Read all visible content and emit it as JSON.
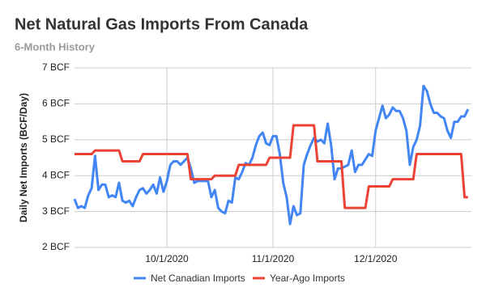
{
  "chart_data": {
    "type": "line",
    "title": "Net Natural Gas Imports From Canada",
    "subtitle": "6-Month History",
    "y_label": "Daily Net Imports (BCF/Day)",
    "x": [
      "9/4/2020",
      "9/5/2020",
      "9/6/2020",
      "9/7/2020",
      "9/8/2020",
      "9/9/2020",
      "9/10/2020",
      "9/11/2020",
      "9/12/2020",
      "9/13/2020",
      "9/14/2020",
      "9/15/2020",
      "9/16/2020",
      "9/17/2020",
      "9/18/2020",
      "9/19/2020",
      "9/20/2020",
      "9/21/2020",
      "9/22/2020",
      "9/23/2020",
      "9/24/2020",
      "9/25/2020",
      "9/26/2020",
      "9/27/2020",
      "9/28/2020",
      "9/29/2020",
      "9/30/2020",
      "10/1/2020",
      "10/2/2020",
      "10/3/2020",
      "10/4/2020",
      "10/5/2020",
      "10/6/2020",
      "10/7/2020",
      "10/8/2020",
      "10/9/2020",
      "10/10/2020",
      "10/11/2020",
      "10/12/2020",
      "10/13/2020",
      "10/14/2020",
      "10/15/2020",
      "10/16/2020",
      "10/17/2020",
      "10/18/2020",
      "10/19/2020",
      "10/20/2020",
      "10/21/2020",
      "10/22/2020",
      "10/23/2020",
      "10/24/2020",
      "10/25/2020",
      "10/26/2020",
      "10/27/2020",
      "10/28/2020",
      "10/29/2020",
      "10/30/2020",
      "10/31/2020",
      "11/1/2020",
      "11/2/2020",
      "11/3/2020",
      "11/4/2020",
      "11/5/2020",
      "11/6/2020",
      "11/7/2020",
      "11/8/2020",
      "11/9/2020",
      "11/10/2020",
      "11/11/2020",
      "11/12/2020",
      "11/13/2020",
      "11/14/2020",
      "11/15/2020",
      "11/16/2020",
      "11/17/2020",
      "11/18/2020",
      "11/19/2020",
      "11/20/2020",
      "11/21/2020",
      "11/22/2020",
      "11/23/2020",
      "11/24/2020",
      "11/25/2020",
      "11/26/2020",
      "11/27/2020",
      "11/28/2020",
      "11/29/2020",
      "11/30/2020",
      "12/1/2020",
      "12/2/2020",
      "12/3/2020",
      "12/4/2020",
      "12/5/2020",
      "12/6/2020",
      "12/7/2020",
      "12/8/2020",
      "12/9/2020",
      "12/10/2020",
      "12/11/2020",
      "12/12/2020",
      "12/13/2020",
      "12/14/2020",
      "12/15/2020",
      "12/16/2020",
      "12/17/2020",
      "12/18/2020",
      "12/19/2020",
      "12/20/2020",
      "12/21/2020",
      "12/22/2020",
      "12/23/2020",
      "12/24/2020",
      "12/25/2020",
      "12/26/2020",
      "12/27/2020",
      "12/28/2020"
    ],
    "series": [
      {
        "name": "Net Canadian Imports",
        "color": "#4285f4",
        "values": [
          3.35,
          3.1,
          3.15,
          3.1,
          3.45,
          3.65,
          4.55,
          3.6,
          3.75,
          3.75,
          3.4,
          3.45,
          3.4,
          3.8,
          3.3,
          3.25,
          3.3,
          3.15,
          3.4,
          3.6,
          3.65,
          3.5,
          3.6,
          3.75,
          3.5,
          3.95,
          3.55,
          3.85,
          4.3,
          4.4,
          4.4,
          4.3,
          4.4,
          4.5,
          4.2,
          3.8,
          3.85,
          3.85,
          3.85,
          3.85,
          3.4,
          3.6,
          3.1,
          3.0,
          2.95,
          3.3,
          3.25,
          3.95,
          3.9,
          4.1,
          4.35,
          4.3,
          4.5,
          4.85,
          5.1,
          5.2,
          4.9,
          4.85,
          5.1,
          5.1,
          4.6,
          3.8,
          3.4,
          2.65,
          3.15,
          2.9,
          2.95,
          4.3,
          4.6,
          4.85,
          5.05,
          4.95,
          5.0,
          4.9,
          5.45,
          4.85,
          3.9,
          4.2,
          4.2,
          4.25,
          4.3,
          4.7,
          4.1,
          4.3,
          4.3,
          4.45,
          4.6,
          4.55,
          5.25,
          5.6,
          5.95,
          5.6,
          5.7,
          5.9,
          5.8,
          5.8,
          5.6,
          5.25,
          4.3,
          4.8,
          5.0,
          5.4,
          6.5,
          6.35,
          6.0,
          5.75,
          5.75,
          5.65,
          5.6,
          5.25,
          5.05,
          5.5,
          5.5,
          5.65,
          5.65,
          5.85
        ]
      },
      {
        "name": "Year-Ago Imports",
        "color": "#ea4335",
        "values": [
          4.6,
          4.6,
          4.6,
          4.6,
          4.6,
          4.6,
          4.7,
          4.7,
          4.7,
          4.7,
          4.7,
          4.7,
          4.7,
          4.7,
          4.4,
          4.4,
          4.4,
          4.4,
          4.4,
          4.4,
          4.6,
          4.6,
          4.6,
          4.6,
          4.6,
          4.6,
          4.6,
          4.6,
          4.6,
          4.6,
          4.6,
          4.6,
          4.6,
          4.6,
          3.9,
          3.9,
          3.9,
          3.9,
          3.9,
          3.9,
          3.9,
          4.0,
          4.0,
          4.0,
          4.0,
          4.0,
          4.0,
          4.0,
          4.3,
          4.3,
          4.3,
          4.3,
          4.3,
          4.3,
          4.3,
          4.3,
          4.3,
          4.5,
          4.5,
          4.5,
          4.5,
          4.5,
          4.5,
          4.5,
          5.4,
          5.4,
          5.4,
          5.4,
          5.4,
          5.4,
          5.4,
          4.4,
          4.4,
          4.4,
          4.4,
          4.4,
          4.4,
          4.4,
          4.4,
          3.1,
          3.1,
          3.1,
          3.1,
          3.1,
          3.1,
          3.1,
          3.7,
          3.7,
          3.7,
          3.7,
          3.7,
          3.7,
          3.7,
          3.9,
          3.9,
          3.9,
          3.9,
          3.9,
          3.9,
          3.9,
          4.6,
          4.6,
          4.6,
          4.6,
          4.6,
          4.6,
          4.6,
          4.6,
          4.6,
          4.6,
          4.6,
          4.6,
          4.6,
          4.6,
          3.4,
          3.4
        ]
      }
    ],
    "xlim": [
      "9/4/2020",
      "12/29/2020"
    ],
    "xticks": [
      "10/1/2020",
      "11/1/2020",
      "12/1/2020"
    ],
    "ylim": [
      2,
      7
    ],
    "yticks": [
      {
        "value": 2,
        "label": "2 BCF"
      },
      {
        "value": 3,
        "label": "3 BCF"
      },
      {
        "value": 4,
        "label": "4 BCF"
      },
      {
        "value": 5,
        "label": "5 BCF"
      },
      {
        "value": 6,
        "label": "6 BCF"
      },
      {
        "value": 7,
        "label": "7 BCF"
      }
    ],
    "grid": true,
    "legend": "bottom"
  }
}
